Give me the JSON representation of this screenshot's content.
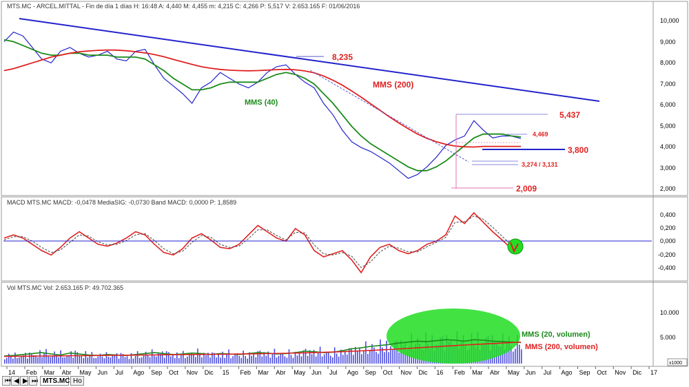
{
  "chart_data": [
    {
      "type": "line",
      "title": "MTS.MC - ARCEL.MITTAL - Fin de día 1 días H: 16:48 A: 4,440 M: 4,455 m: 4,215 C: 4,266 P: 5,517 V: 2.653.165 F: 01/06/2016",
      "yticks": [
        "10,000",
        "9,000",
        "8,000",
        "7,000",
        "6,000",
        "5,000",
        "4,000",
        "3,000",
        "2,000"
      ],
      "ylim": [
        1.7,
        10.5
      ],
      "series": [
        {
          "name": "",
          "color": "#2222cc",
          "values": [
            9.3,
            9.8,
            9.6,
            9.0,
            8.4,
            8.2,
            8.8,
            9.0,
            8.7,
            8.5,
            8.6,
            8.8,
            8.4,
            8.3,
            8.8,
            8.9,
            8.1,
            7.4,
            7.0,
            6.6,
            6.1,
            6.9,
            7.2,
            7.7,
            7.4,
            7.1,
            6.9,
            7.2,
            7.7,
            8.0,
            8.1,
            7.6,
            7.2,
            6.9,
            6.1,
            5.5,
            4.7,
            4.1,
            3.8,
            3.6,
            3.3,
            3.0,
            2.6,
            2.2,
            2.4,
            2.8,
            3.3,
            3.9,
            4.2,
            4.4,
            5.2,
            4.7,
            4.3,
            4.4,
            4.4,
            4.27
          ]
        },
        {
          "name": "MMS (40)",
          "color": "#1a8a1a",
          "values": [
            9.4,
            9.3,
            9.1,
            8.9,
            8.7,
            8.6,
            8.6,
            8.7,
            8.7,
            8.6,
            8.6,
            8.6,
            8.5,
            8.5,
            8.5,
            8.4,
            8.1,
            7.8,
            7.4,
            7.1,
            6.8,
            6.8,
            6.9,
            7.1,
            7.2,
            7.2,
            7.2,
            7.2,
            7.4,
            7.6,
            7.7,
            7.6,
            7.4,
            7.1,
            6.6,
            6.1,
            5.5,
            4.9,
            4.4,
            4.0,
            3.7,
            3.4,
            3.1,
            2.8,
            2.6,
            2.6,
            2.8,
            3.1,
            3.5,
            3.9,
            4.3,
            4.5,
            4.5,
            4.5,
            4.4,
            4.35
          ]
        },
        {
          "name": "MMS (200)",
          "color": "#e02020",
          "values": [
            7.8,
            7.9,
            8.05,
            8.2,
            8.35,
            8.5,
            8.6,
            8.7,
            8.78,
            8.82,
            8.85,
            8.87,
            8.86,
            8.83,
            8.78,
            8.72,
            8.63,
            8.52,
            8.38,
            8.25,
            8.12,
            8.0,
            7.92,
            7.86,
            7.82,
            7.8,
            7.79,
            7.8,
            7.82,
            7.85,
            7.86,
            7.84,
            7.78,
            7.68,
            7.52,
            7.3,
            7.04,
            6.74,
            6.42,
            6.08,
            5.74,
            5.4,
            5.08,
            4.78,
            4.5,
            4.28,
            4.1,
            3.97,
            3.88,
            3.84,
            3.83,
            3.86,
            3.86,
            3.86,
            3.86,
            3.86
          ]
        }
      ],
      "annotations": [
        "8,235",
        "MMS (200)",
        "MMS (40)",
        "5,437",
        "4,469",
        "3,800",
        "3,274 / 3,131",
        "2,009"
      ]
    },
    {
      "type": "line",
      "title": "MACD MTS.MC MACD: -0,0478 MediaSIG: -0,0730 Band MACD: 0,0000 P: 1,8589",
      "yticks": [
        "0,400",
        "0,200",
        "0,000",
        "-0,200",
        "-0,400"
      ],
      "ylim": [
        -0.6,
        0.55
      ],
      "series": [
        {
          "name": "",
          "color": "#e02020",
          "values": [
            0.05,
            0.1,
            0.05,
            -0.05,
            -0.15,
            -0.22,
            -0.1,
            0.05,
            0.15,
            0.05,
            -0.05,
            -0.08,
            -0.03,
            0.05,
            0.15,
            0.1,
            -0.05,
            -0.18,
            -0.22,
            -0.12,
            0.05,
            0.12,
            0.02,
            -0.1,
            -0.12,
            -0.05,
            0.1,
            0.25,
            0.15,
            0.05,
            0.0,
            0.2,
            0.1,
            -0.15,
            -0.25,
            -0.2,
            -0.15,
            -0.3,
            -0.5,
            -0.25,
            -0.1,
            -0.05,
            -0.15,
            -0.2,
            -0.15,
            -0.05,
            0.0,
            0.1,
            0.4,
            0.28,
            0.45,
            0.3,
            0.15,
            0.02,
            -0.12,
            -0.05
          ]
        },
        {
          "name": "",
          "color": "#444444",
          "dashed": true,
          "values": [
            0.02,
            0.07,
            0.07,
            0.0,
            -0.1,
            -0.18,
            -0.14,
            -0.02,
            0.1,
            0.08,
            -0.01,
            -0.06,
            -0.05,
            0.01,
            0.1,
            0.12,
            0.01,
            -0.12,
            -0.2,
            -0.16,
            -0.02,
            0.09,
            0.06,
            -0.05,
            -0.1,
            -0.08,
            0.04,
            0.18,
            0.18,
            0.09,
            0.02,
            0.14,
            0.13,
            -0.06,
            -0.2,
            -0.22,
            -0.18,
            -0.24,
            -0.42,
            -0.33,
            -0.17,
            -0.08,
            -0.11,
            -0.17,
            -0.17,
            -0.09,
            -0.02,
            0.06,
            0.3,
            0.31,
            0.4,
            0.35,
            0.22,
            0.08,
            -0.07,
            -0.07
          ]
        }
      ]
    },
    {
      "type": "bar",
      "title": "Vol MTS.MC Vol: 2.653.165 P: 49.702.365",
      "yticks": [
        "10.000",
        "5.000"
      ],
      "yunit": "x1000",
      "ylim": [
        0,
        15000
      ],
      "series": [
        {
          "name": "MMS (20, volumen)",
          "color": "#1a8a1a",
          "values": [
            1600,
            1700,
            1900,
            2100,
            2300,
            2000,
            1800,
            2200,
            2000,
            1800,
            1700,
            1900,
            1800,
            1700,
            1900,
            2100,
            2300,
            2100,
            1900,
            2000,
            2200,
            2100,
            1900,
            2100,
            2000,
            1900,
            2100,
            2300,
            2200,
            2000,
            2100,
            2300,
            2600,
            2500,
            2300,
            2400,
            2700,
            3100,
            3300,
            3600,
            3800,
            4000,
            4300,
            4500,
            4700,
            4600,
            4800,
            5000,
            4900,
            4700,
            5000,
            4900,
            4700,
            4600,
            4500,
            4400
          ]
        },
        {
          "name": "MMS (200, volumen)",
          "color": "#e02020",
          "values": [
            1500,
            1520,
            1540,
            1560,
            1580,
            1600,
            1620,
            1640,
            1660,
            1680,
            1700,
            1720,
            1740,
            1760,
            1780,
            1800,
            1820,
            1840,
            1860,
            1880,
            1900,
            1920,
            1940,
            1960,
            1980,
            2000,
            2030,
            2060,
            2090,
            2120,
            2160,
            2200,
            2250,
            2300,
            2360,
            2420,
            2500,
            2580,
            2670,
            2760,
            2860,
            2960,
            3070,
            3180,
            3300,
            3420,
            3540,
            3660,
            3780,
            3900,
            4000,
            4100,
            4200,
            4300,
            4400,
            4500
          ]
        }
      ],
      "annotations": [
        "MMS (20, volumen)",
        "MMS (200, volumen)"
      ]
    }
  ],
  "xaxis": {
    "ticks": [
      "14",
      "Feb",
      "Mar",
      "Abr",
      "May",
      "Jun",
      "Jul",
      "Ago",
      "Sep",
      "Oct",
      "Nov",
      "Dic",
      "15",
      "Feb",
      "Mar",
      "Abr",
      "May",
      "Jun",
      "Jul",
      "Ago",
      "Sep",
      "Oct",
      "Nov",
      "Dic",
      "16",
      "Feb",
      "Mar",
      "Abr",
      "May",
      "Jun",
      "Jul",
      "Ago",
      "Sep",
      "Oct",
      "Nov",
      "Dic",
      "17"
    ]
  },
  "tabs": {
    "symbol": "MTS.MC",
    "extra": "Ho"
  },
  "colors": {
    "blue": "#2222cc",
    "red": "#e02020",
    "green": "#1a8a1a",
    "ellipse": "#22dd22"
  }
}
